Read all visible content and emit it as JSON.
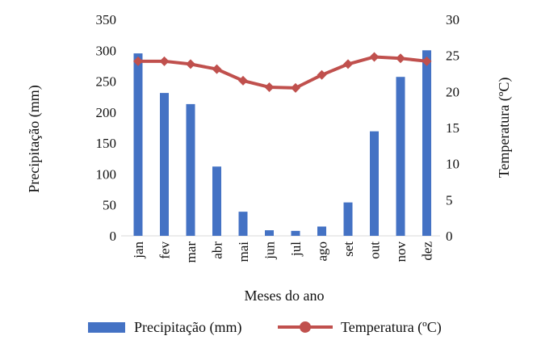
{
  "chart_data": {
    "type": "bar-line",
    "title": "",
    "categories": [
      "jan",
      "fev",
      "mar",
      "abr",
      "mai",
      "jun",
      "jul",
      "ago",
      "set",
      "out",
      "nov",
      "dez"
    ],
    "series": [
      {
        "name": "Precipitação (mm)",
        "type": "bar",
        "axis": "left",
        "color": "#4472C4",
        "values": [
          295,
          231,
          213,
          112,
          39,
          9,
          8,
          15,
          54,
          169,
          257,
          300
        ]
      },
      {
        "name": "Temperatura (ºC)",
        "type": "line",
        "axis": "right",
        "color": "#C0504D",
        "values": [
          24.2,
          24.2,
          23.8,
          23.1,
          21.5,
          20.6,
          20.5,
          22.3,
          23.8,
          24.8,
          24.6,
          24.2
        ]
      }
    ],
    "xlabel": "Meses do ano",
    "ylabel_left": "Precipitação (mm)",
    "ylabel_right": "Temperatura (ºC)",
    "ylim_left": [
      0,
      350
    ],
    "ylim_right": [
      0,
      30
    ],
    "yticks_left": [
      "0",
      "50",
      "100",
      "150",
      "200",
      "250",
      "300",
      "350"
    ],
    "yticks_right": [
      "0",
      "5",
      "10",
      "15",
      "20",
      "25",
      "30"
    ],
    "legend_position": "bottom",
    "grid": false
  }
}
